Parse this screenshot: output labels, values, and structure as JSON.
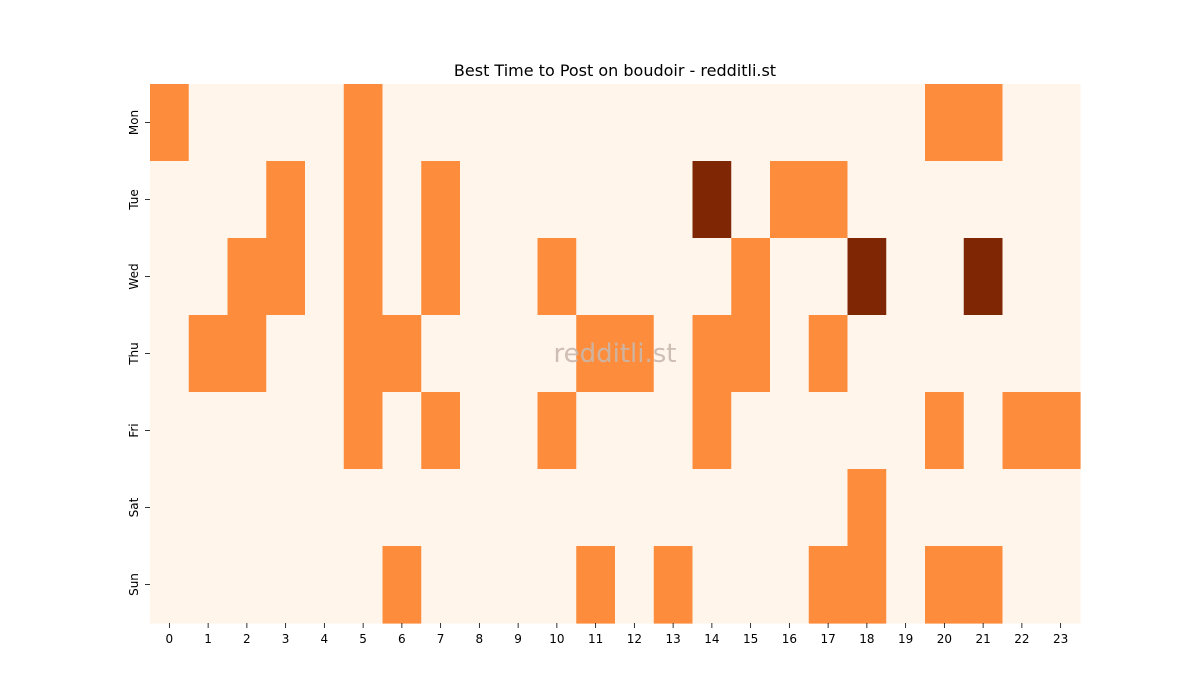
{
  "chart_data": {
    "type": "heatmap",
    "title": "Best Time to Post on boudoir - redditli.st",
    "xlabel": "",
    "ylabel": "",
    "x_categories": [
      "0",
      "1",
      "2",
      "3",
      "4",
      "5",
      "6",
      "7",
      "8",
      "9",
      "10",
      "11",
      "12",
      "13",
      "14",
      "15",
      "16",
      "17",
      "18",
      "19",
      "20",
      "21",
      "22",
      "23"
    ],
    "y_categories": [
      "Mon",
      "Tue",
      "Wed",
      "Thu",
      "Fri",
      "Sat",
      "Sun"
    ],
    "values": [
      [
        1,
        0,
        0,
        0,
        0,
        1,
        0,
        0,
        0,
        0,
        0,
        0,
        0,
        0,
        0,
        0,
        0,
        0,
        0,
        0,
        1,
        1,
        0,
        0
      ],
      [
        0,
        0,
        0,
        1,
        0,
        1,
        0,
        1,
        0,
        0,
        0,
        0,
        0,
        0,
        2,
        0,
        1,
        1,
        0,
        0,
        0,
        0,
        0,
        0
      ],
      [
        0,
        0,
        1,
        1,
        0,
        1,
        0,
        1,
        0,
        0,
        1,
        0,
        0,
        0,
        0,
        1,
        0,
        0,
        2,
        0,
        0,
        2,
        0,
        0
      ],
      [
        0,
        1,
        1,
        0,
        0,
        1,
        1,
        0,
        0,
        0,
        0,
        1,
        1,
        0,
        1,
        1,
        0,
        1,
        0,
        0,
        0,
        0,
        0,
        0
      ],
      [
        0,
        0,
        0,
        0,
        0,
        1,
        0,
        1,
        0,
        0,
        1,
        0,
        0,
        0,
        1,
        0,
        0,
        0,
        0,
        0,
        1,
        0,
        1,
        1
      ],
      [
        0,
        0,
        0,
        0,
        0,
        0,
        0,
        0,
        0,
        0,
        0,
        0,
        0,
        0,
        0,
        0,
        0,
        0,
        1,
        0,
        0,
        0,
        0,
        0
      ],
      [
        0,
        0,
        0,
        0,
        0,
        0,
        1,
        0,
        0,
        0,
        0,
        1,
        0,
        1,
        0,
        0,
        0,
        1,
        1,
        0,
        1,
        1,
        0,
        0
      ]
    ],
    "colormap": {
      "0": "#fff5eb",
      "1": "#fd8d3c",
      "2": "#7f2704"
    },
    "grid": false,
    "legend": "none"
  },
  "watermark": "redditli.st"
}
